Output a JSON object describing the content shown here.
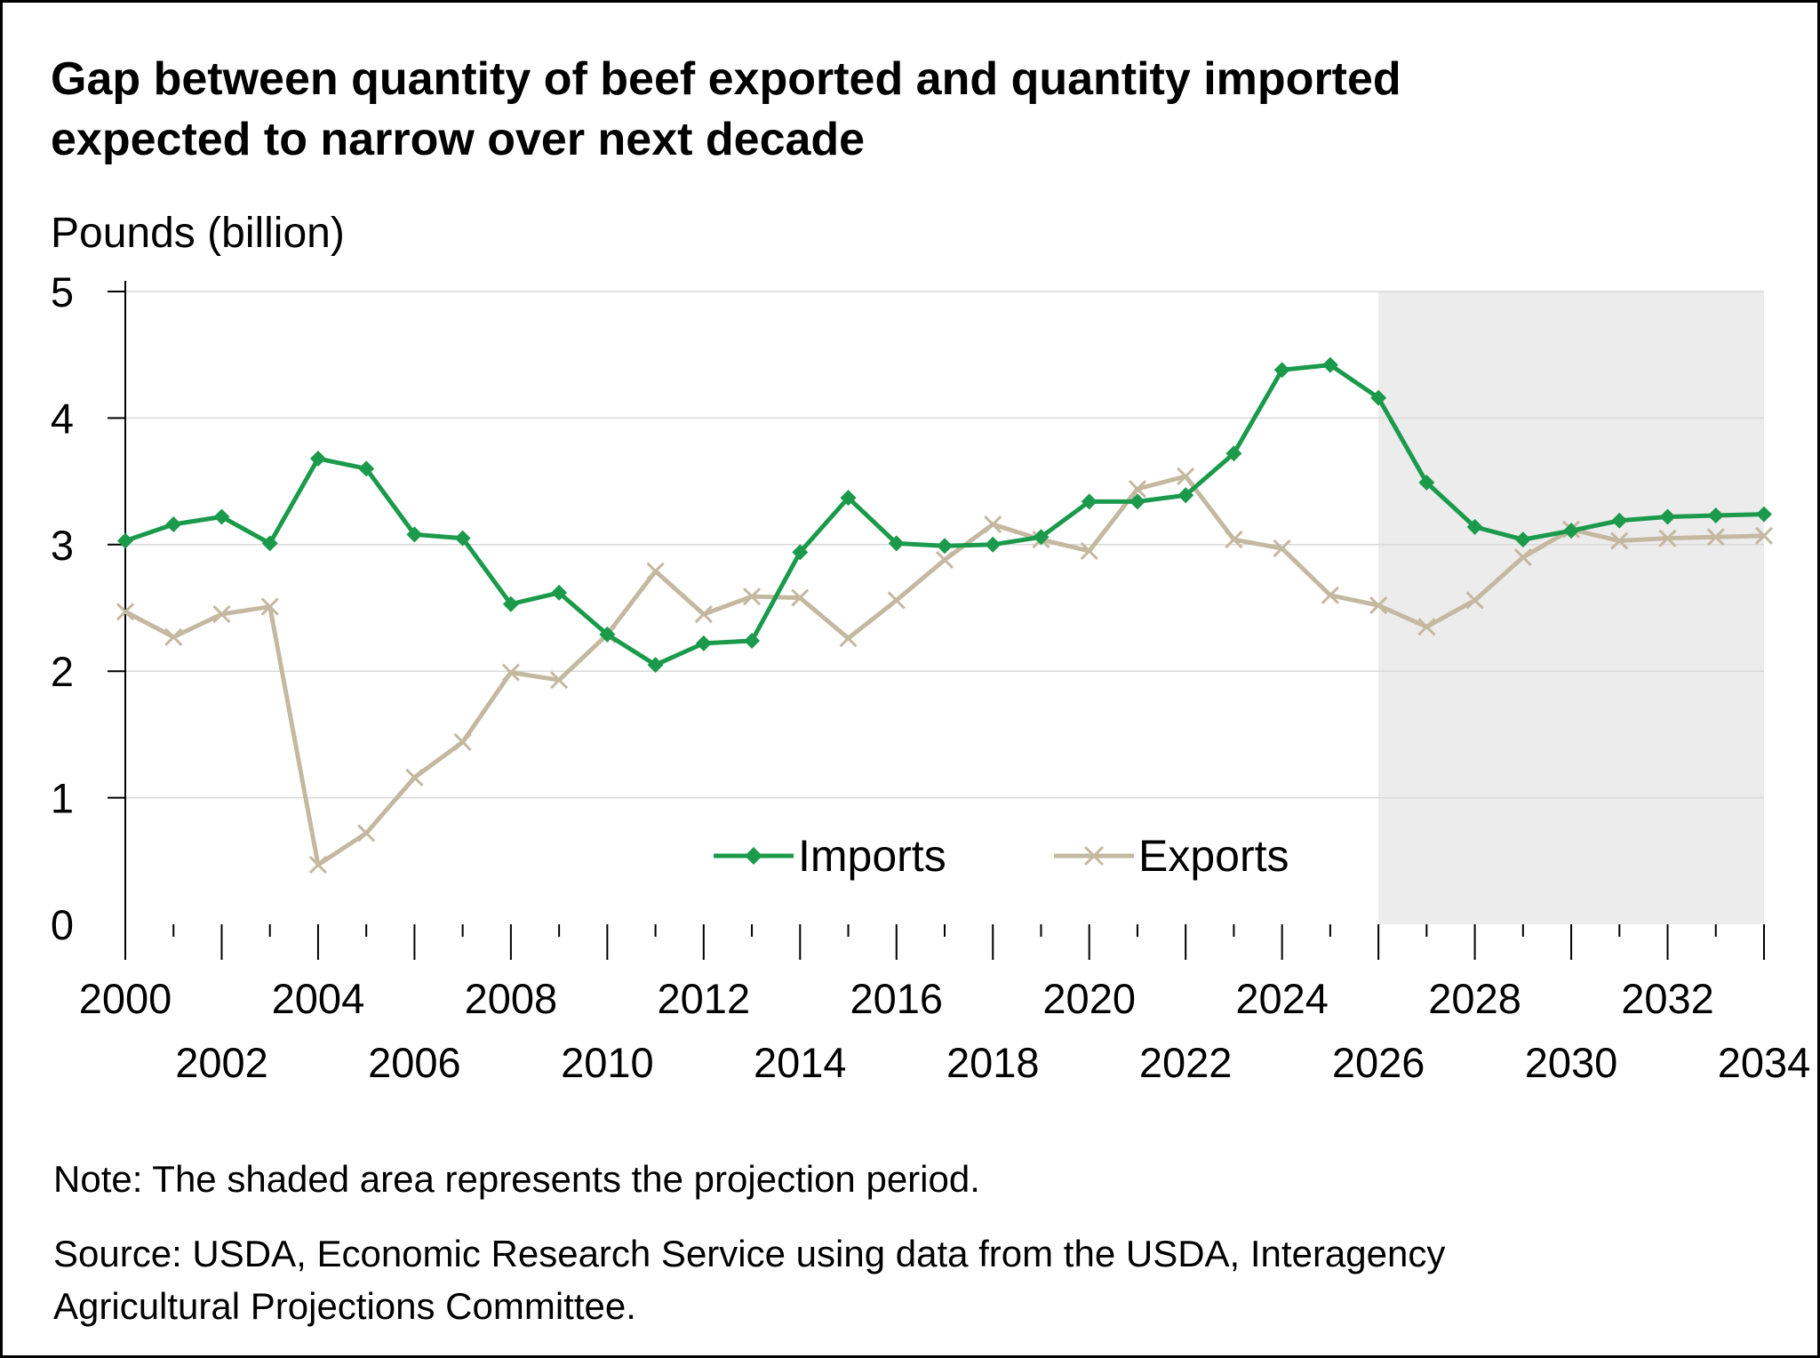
{
  "title_lines": [
    "Gap between quantity of beef exported and quantity imported",
    "expected to narrow over next decade"
  ],
  "ylabel": "Pounds (billion)",
  "note": "Note: The shaded area represents the projection period.",
  "source_lines": [
    "Source: USDA, Economic Research Service using data from the USDA, Interagency",
    "Agricultural Projections Committee."
  ],
  "colors": {
    "imports": "#1a9a4a",
    "exports": "#c5b8a0",
    "projection_shade": "#ececec",
    "gridline": "#d9d9d9",
    "axis": "#000000"
  },
  "chart_data": {
    "type": "line",
    "x": [
      2000,
      2001,
      2002,
      2003,
      2004,
      2005,
      2006,
      2007,
      2008,
      2009,
      2010,
      2011,
      2012,
      2013,
      2014,
      2015,
      2016,
      2017,
      2018,
      2019,
      2020,
      2021,
      2022,
      2023,
      2024,
      2025,
      2026,
      2027,
      2028,
      2029,
      2030,
      2031,
      2032,
      2033,
      2034
    ],
    "series": [
      {
        "name": "Imports",
        "marker": "diamond",
        "values": [
          3.03,
          3.16,
          3.22,
          3.01,
          3.68,
          3.6,
          3.08,
          3.05,
          2.53,
          2.62,
          2.29,
          2.05,
          2.22,
          2.24,
          2.94,
          3.37,
          3.01,
          2.99,
          3.0,
          3.06,
          3.34,
          3.34,
          3.39,
          3.72,
          4.38,
          4.42,
          4.16,
          3.49,
          3.14,
          3.04,
          3.11,
          3.19,
          3.22,
          3.23,
          3.24
        ]
      },
      {
        "name": "Exports",
        "marker": "x",
        "values": [
          2.47,
          2.27,
          2.45,
          2.51,
          0.47,
          0.72,
          1.16,
          1.44,
          1.99,
          1.93,
          2.29,
          2.79,
          2.45,
          2.59,
          2.58,
          2.26,
          2.56,
          2.88,
          3.16,
          3.04,
          2.95,
          3.44,
          3.54,
          3.04,
          2.97,
          2.6,
          2.52,
          2.35,
          2.56,
          2.9,
          3.12,
          3.03,
          3.05,
          3.06,
          3.07
        ]
      }
    ],
    "xlim": [
      2000,
      2034
    ],
    "ylim": [
      0,
      5
    ],
    "yticks": [
      0,
      1,
      2,
      3,
      4,
      5
    ],
    "xtick_labels_upper": [
      "2000",
      "2004",
      "2008",
      "2012",
      "2016",
      "2020",
      "2024",
      "2028",
      "2032"
    ],
    "xtick_labels_lower": [
      "2002",
      "2006",
      "2010",
      "2014",
      "2018",
      "2022",
      "2026",
      "2030",
      "2034"
    ],
    "projection_start": 2026,
    "projection_end": 2034,
    "grid": "horizontal",
    "legend_position": "bottom-center"
  }
}
